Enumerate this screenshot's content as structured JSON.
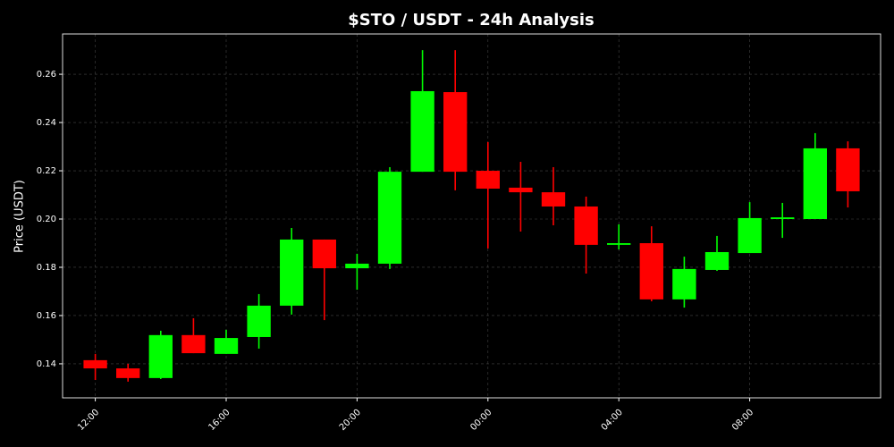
{
  "chart_data": {
    "type": "candlestick",
    "title": "$STO / USDT - 24h Analysis",
    "y_label": "Price (USDT)",
    "categories": [
      "12:00",
      null,
      null,
      null,
      "16:00",
      null,
      null,
      null,
      "20:00",
      null,
      null,
      null,
      "00:00",
      null,
      null,
      null,
      "04:00",
      null,
      null,
      null,
      "08:00",
      null,
      null,
      null
    ],
    "open": [
      0.1415,
      0.1381,
      0.1341,
      0.1519,
      0.1441,
      0.1511,
      0.1641,
      0.1915,
      0.1796,
      0.1815,
      0.2196,
      0.2526,
      0.22,
      0.213,
      0.2111,
      0.2052,
      0.1893,
      0.19,
      0.1667,
      0.1789,
      0.1859,
      0.2,
      0.2,
      0.2293
    ],
    "high": [
      0.1441,
      0.14,
      0.1537,
      0.1589,
      0.1541,
      0.1689,
      0.1963,
      0.1915,
      0.1856,
      0.2215,
      0.27,
      0.27,
      0.2319,
      0.2237,
      0.2215,
      0.2093,
      0.1978,
      0.197,
      0.1844,
      0.193,
      0.207,
      0.2067,
      0.2356,
      0.2322
    ],
    "low": [
      0.1333,
      0.1326,
      0.1337,
      0.1444,
      0.1441,
      0.1463,
      0.1604,
      0.1581,
      0.1707,
      0.1793,
      0.2196,
      0.2119,
      0.1878,
      0.1948,
      0.1974,
      0.1774,
      0.1874,
      0.1659,
      0.1633,
      0.1785,
      0.1859,
      0.1922,
      0.2,
      0.2048
    ],
    "close": [
      0.1381,
      0.1341,
      0.1519,
      0.1444,
      0.1507,
      0.1641,
      0.1915,
      0.1796,
      0.1815,
      0.2196,
      0.253,
      0.2196,
      0.2126,
      0.2111,
      0.2052,
      0.1893,
      0.19,
      0.1667,
      0.1793,
      0.1863,
      0.2004,
      0.2007,
      0.2293,
      0.2115
    ],
    "up_color": "#00ff00",
    "down_color": "#ff0000",
    "ylim": [
      0.1259,
      0.2767
    ],
    "yticks": [
      0.14,
      0.16,
      0.18,
      {
        "value": 0.2,
        "label": "0.20"
      },
      0.22,
      0.24,
      0.26
    ],
    "grid": true
  }
}
